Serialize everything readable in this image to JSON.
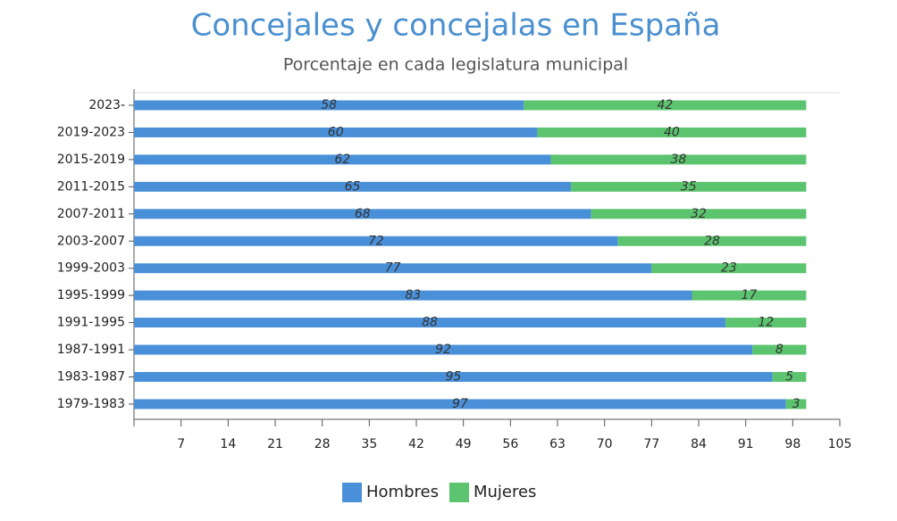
{
  "chart_data": {
    "type": "stacked-bar-horizontal",
    "title": "Concejales y concejalas en España",
    "subtitle": "Porcentaje en cada legislatura municipal",
    "categories": [
      "2023-",
      "2019-2023",
      "2015-2019",
      "2011-2015",
      "2007-2011",
      "2003-2007",
      "1999-2003",
      "1995-1999",
      "1991-1995",
      "1987-1991",
      "1983-1987",
      "1979-1983"
    ],
    "series": [
      {
        "name": "Hombres",
        "color": "#4a90d9",
        "values": [
          58,
          60,
          62,
          65,
          68,
          72,
          77,
          83,
          88,
          92,
          95,
          97
        ]
      },
      {
        "name": "Mujeres",
        "color": "#5cc46e",
        "values": [
          42,
          40,
          38,
          35,
          32,
          28,
          23,
          17,
          12,
          8,
          5,
          3
        ]
      }
    ],
    "xlim": [
      0,
      105
    ],
    "xticks": [
      7,
      14,
      21,
      28,
      35,
      42,
      49,
      56,
      63,
      70,
      77,
      84,
      91,
      98,
      105
    ]
  }
}
